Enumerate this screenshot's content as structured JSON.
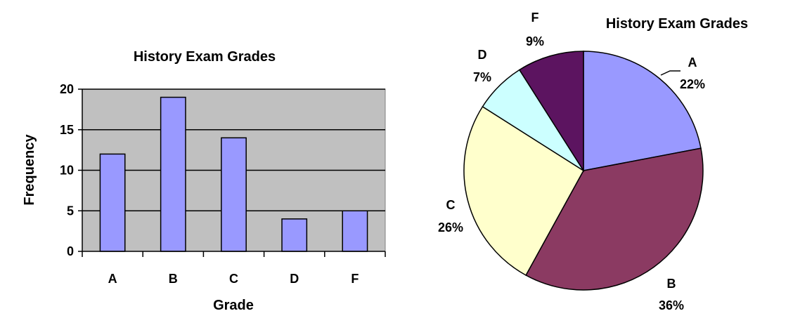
{
  "chart_data": [
    {
      "type": "bar",
      "title": "History Exam Grades",
      "xlabel": "Grade",
      "ylabel": "Frequency",
      "categories": [
        "A",
        "B",
        "C",
        "D",
        "F"
      ],
      "values": [
        12,
        19,
        14,
        4,
        5
      ],
      "ylim": [
        0,
        20
      ],
      "yticks": [
        0,
        5,
        10,
        15,
        20
      ],
      "grid": true,
      "colors": {
        "bar": "#9999ff",
        "plot_bg": "#c0c0c0",
        "bar_stroke": "#000000"
      }
    },
    {
      "type": "pie",
      "title": "History Exam Grades",
      "slices": [
        {
          "label": "A",
          "value": 22,
          "pct_label": "22%",
          "color": "#9999ff"
        },
        {
          "label": "B",
          "value": 36,
          "pct_label": "36%",
          "color": "#8b3a62"
        },
        {
          "label": "C",
          "value": 26,
          "pct_label": "26%",
          "color": "#ffffcc"
        },
        {
          "label": "D",
          "value": 7,
          "pct_label": "7%",
          "color": "#ccffff"
        },
        {
          "label": "F",
          "value": 9,
          "pct_label": "9%",
          "color": "#5c1460"
        }
      ]
    }
  ]
}
